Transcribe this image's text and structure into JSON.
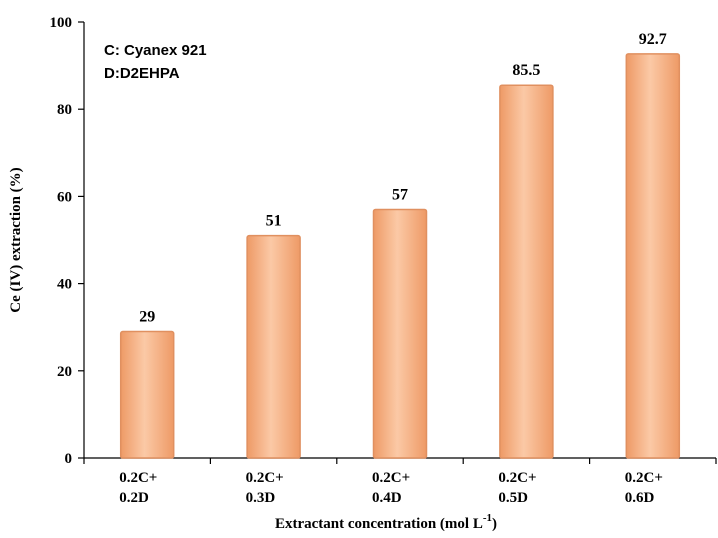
{
  "chart_data": {
    "type": "bar",
    "categories": [
      [
        "0.2C+",
        "0.2D"
      ],
      [
        "0.2C+",
        "0.3D"
      ],
      [
        "0.2C+",
        "0.4D"
      ],
      [
        "0.2C+",
        "0.5D"
      ],
      [
        "0.2C+",
        "0.6D"
      ]
    ],
    "values": [
      29,
      51,
      57,
      85.5,
      92.7
    ],
    "data_labels": [
      "29",
      "51",
      "57",
      "85.5",
      "92.7"
    ],
    "ylabel": "Ce (IV) extraction (%)",
    "xlabel_main": "Extractant concentration (mol L",
    "xlabel_sup": "-1",
    "xlabel_close": ")",
    "ylim": [
      0,
      100
    ],
    "yticks": [
      0,
      20,
      40,
      60,
      80,
      100
    ],
    "annotations": [
      "C: Cyanex 921",
      "D:D2EHPA"
    ],
    "grid": false,
    "bar_color": "#f2a574",
    "bar_edge_color": "#e09060"
  }
}
